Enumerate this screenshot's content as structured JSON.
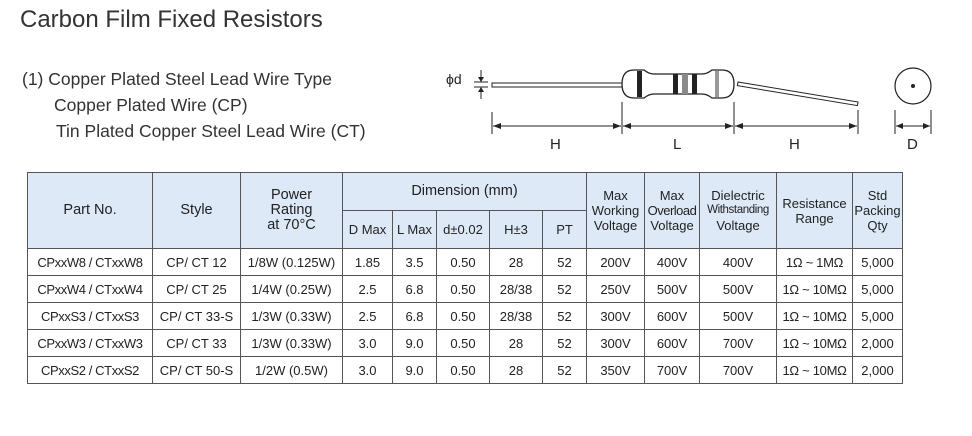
{
  "title": "Carbon Film Fixed Resistors",
  "types": {
    "line1": "(1) Copper Plated Steel Lead Wire Type",
    "line2": "Copper Plated Wire (CP)",
    "line3": "Tin Plated Copper  Steel Lead Wire (CT)"
  },
  "diagram": {
    "phi_d": "ϕd",
    "label_h_left": "H",
    "label_l": "L",
    "label_h_right": "H",
    "label_d": "D"
  },
  "table": {
    "headers": {
      "part_no": "Part No.",
      "style": "Style",
      "power_rating_1": "Power",
      "power_rating_2": "Rating",
      "power_rating_3": "at 70°C",
      "dimension": "Dimension (mm)",
      "d_max": "D Max",
      "l_max": "L Max",
      "d_tol": "d±0.02",
      "h_tol": "H±3",
      "pt": "PT",
      "max_working_1": "Max",
      "max_working_2": "Working",
      "max_working_3": "Voltage",
      "max_overload_1": "Max",
      "max_overload_2": "Overload",
      "max_overload_3": "Voltage",
      "dielectric_1": "Dielectric",
      "dielectric_2": "Withstanding",
      "dielectric_3": "Voltage",
      "resistance_1": "Resistance",
      "resistance_2": "Range",
      "std_1": "Std",
      "std_2": "Packing",
      "std_3": "Qty"
    },
    "rows": [
      [
        "CPxxW8 / CTxxW8",
        "CP/ CT 12",
        "1/8W (0.125W)",
        "1.85",
        "3.5",
        "0.50",
        "28",
        "52",
        "200V",
        "400V",
        "400V",
        "1Ω ~ 1MΩ",
        "5,000"
      ],
      [
        "CPxxW4 / CTxxW4",
        "CP/ CT 25",
        "1/4W (0.25W)",
        "2.5",
        "6.8",
        "0.50",
        "28/38",
        "52",
        "250V",
        "500V",
        "500V",
        "1Ω ~ 10MΩ",
        "5,000"
      ],
      [
        "CPxxS3 / CTxxS3",
        "CP/ CT 33-S",
        "1/3W (0.33W)",
        "2.5",
        "6.8",
        "0.50",
        "28/38",
        "52",
        "300V",
        "600V",
        "500V",
        "1Ω ~ 10MΩ",
        "5,000"
      ],
      [
        "CPxxW3 / CTxxW3",
        "CP/ CT 33",
        "1/3W (0.33W)",
        "3.0",
        "9.0",
        "0.50",
        "28",
        "52",
        "300V",
        "600V",
        "700V",
        "1Ω ~ 10MΩ",
        "2,000"
      ],
      [
        "CPxxS2 / CTxxS2",
        "CP/ CT 50-S",
        "1/2W (0.5W)",
        "3.0",
        "9.0",
        "0.50",
        "28",
        "52",
        "350V",
        "700V",
        "700V",
        "1Ω ~ 10MΩ",
        "2,000"
      ]
    ]
  }
}
